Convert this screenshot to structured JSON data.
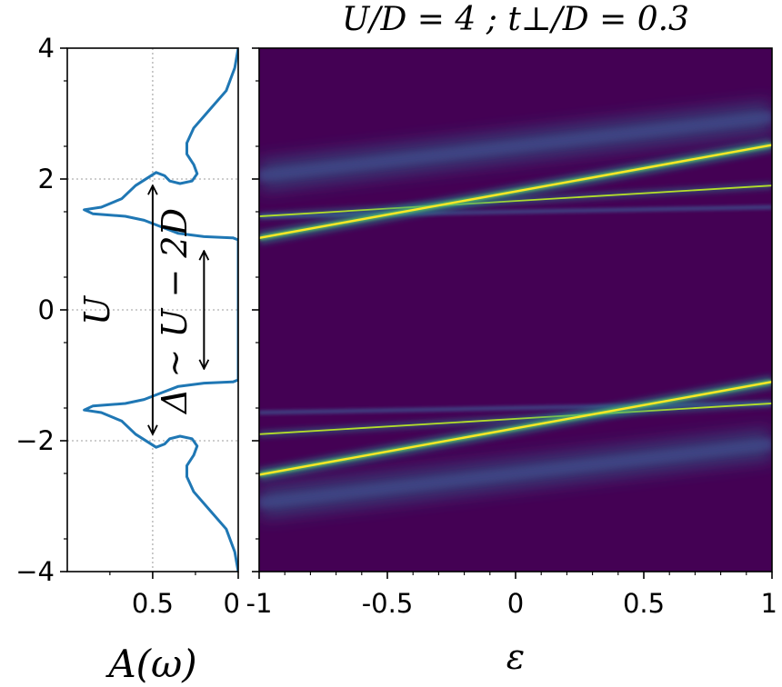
{
  "chart_data": [
    {
      "type": "line",
      "name": "spectral-function",
      "xlabel": "A(ω)",
      "ylabel": "",
      "xlim": [
        0.999,
        0.0
      ],
      "ylim": [
        -4,
        4
      ],
      "x_ticks": [
        0.5,
        0
      ],
      "x_tick_labels": [
        "0.5",
        "0"
      ],
      "y_ticks": [
        4,
        2,
        0,
        -2,
        -4
      ],
      "y_tick_labels": [
        "4",
        "2",
        "0",
        "−2",
        "−4"
      ],
      "grid": true,
      "color": "#1f77b4",
      "series": [
        {
          "name": "A(omega)",
          "points": [
            [
              0.0,
              -4.0
            ],
            [
              0.02,
              -3.7
            ],
            [
              0.07,
              -3.35
            ],
            [
              0.17,
              -3.05
            ],
            [
              0.26,
              -2.78
            ],
            [
              0.3,
              -2.55
            ],
            [
              0.3,
              -2.38
            ],
            [
              0.26,
              -2.22
            ],
            [
              0.24,
              -2.08
            ],
            [
              0.27,
              -1.97
            ],
            [
              0.34,
              -1.93
            ],
            [
              0.4,
              -1.97
            ],
            [
              0.43,
              -2.05
            ],
            [
              0.48,
              -2.1
            ],
            [
              0.6,
              -1.9
            ],
            [
              0.68,
              -1.7
            ],
            [
              0.8,
              -1.57
            ],
            [
              0.9,
              -1.53
            ],
            [
              0.85,
              -1.47
            ],
            [
              0.66,
              -1.43
            ],
            [
              0.55,
              -1.37
            ],
            [
              0.45,
              -1.27
            ],
            [
              0.35,
              -1.17
            ],
            [
              0.2,
              -1.12
            ],
            [
              0.03,
              -1.1
            ],
            [
              0.0,
              -1.07
            ],
            [
              0.0,
              1.07
            ],
            [
              0.03,
              1.1
            ],
            [
              0.2,
              1.12
            ],
            [
              0.35,
              1.17
            ],
            [
              0.45,
              1.27
            ],
            [
              0.55,
              1.37
            ],
            [
              0.66,
              1.43
            ],
            [
              0.85,
              1.47
            ],
            [
              0.9,
              1.53
            ],
            [
              0.8,
              1.57
            ],
            [
              0.68,
              1.7
            ],
            [
              0.6,
              1.9
            ],
            [
              0.48,
              2.1
            ],
            [
              0.43,
              2.05
            ],
            [
              0.4,
              1.97
            ],
            [
              0.34,
              1.93
            ],
            [
              0.27,
              1.97
            ],
            [
              0.24,
              2.08
            ],
            [
              0.26,
              2.22
            ],
            [
              0.3,
              2.38
            ],
            [
              0.3,
              2.55
            ],
            [
              0.26,
              2.78
            ],
            [
              0.17,
              3.05
            ],
            [
              0.07,
              3.35
            ],
            [
              0.02,
              3.7
            ],
            [
              0.0,
              4.0
            ]
          ]
        }
      ],
      "annotations": [
        {
          "text": "U",
          "from": [
            0.5,
            -1.9
          ],
          "to": [
            0.5,
            1.9
          ]
        },
        {
          "text": "Δ ∼ U − 2D",
          "from": [
            0.2,
            -0.9
          ],
          "to": [
            0.2,
            0.9
          ]
        }
      ]
    },
    {
      "type": "heatmap",
      "name": "spectral-map",
      "title": "U/D = 4 ; t⊥/D = 0.3",
      "xlabel": "ε",
      "ylabel": "",
      "xlim": [
        -1,
        1
      ],
      "ylim": [
        -4,
        4
      ],
      "x_ticks": [
        -1,
        -0.5,
        0,
        0.5,
        1
      ],
      "x_tick_labels": [
        "-1",
        "-0.5",
        "0",
        "0.5",
        "1"
      ],
      "y_ticks": [
        4,
        2,
        0,
        -2,
        -4
      ],
      "colormap": "viridis",
      "bands": [
        {
          "name": "upper-sharp-band",
          "x": [
            -1,
            1
          ],
          "y": [
            1.1,
            2.52
          ],
          "intensity": "high"
        },
        {
          "name": "upper-flat-band",
          "x": [
            -1,
            1
          ],
          "y": [
            1.43,
            1.9
          ],
          "intensity": "medium"
        },
        {
          "name": "upper-broad-band",
          "x": [
            -1,
            1
          ],
          "y": [
            2.05,
            2.95
          ],
          "intensity": "low"
        },
        {
          "name": "upper-faint-band",
          "x": [
            -1,
            1
          ],
          "y": [
            1.43,
            1.57
          ],
          "intensity": "faint"
        },
        {
          "name": "lower-sharp-band",
          "x": [
            -1,
            1
          ],
          "y": [
            -2.52,
            -1.1
          ],
          "intensity": "high"
        },
        {
          "name": "lower-flat-band",
          "x": [
            -1,
            1
          ],
          "y": [
            -1.9,
            -1.43
          ],
          "intensity": "medium"
        },
        {
          "name": "lower-broad-band",
          "x": [
            -1,
            1
          ],
          "y": [
            -2.95,
            -2.05
          ],
          "intensity": "low"
        },
        {
          "name": "lower-faint-band",
          "x": [
            -1,
            1
          ],
          "y": [
            -1.57,
            -1.43
          ],
          "intensity": "faint"
        }
      ]
    }
  ]
}
